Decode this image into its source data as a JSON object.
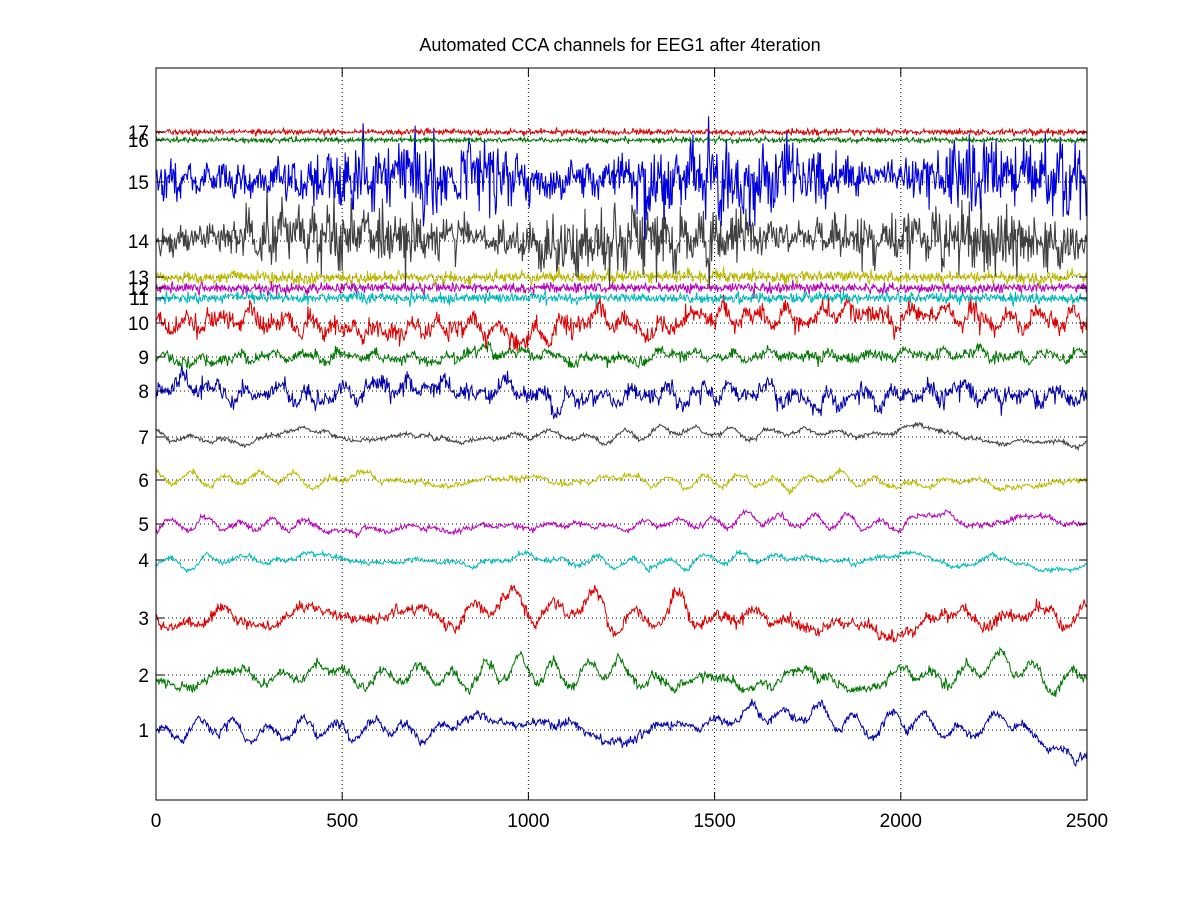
{
  "chart_data": {
    "type": "line",
    "title": "Automated CCA channels for EEG1 after  4teration",
    "xlabel": "",
    "ylabel": "",
    "xlim": [
      0,
      2500
    ],
    "xticks": [
      "0",
      "500",
      "1000",
      "1500",
      "2000",
      "2500"
    ],
    "x_tick_values": [
      0,
      500,
      1000,
      1500,
      2000,
      2500
    ],
    "grid": true,
    "legend": "none",
    "n_samples": 2500,
    "series": [
      {
        "label": "1",
        "color": "#0000aa",
        "amp": 0.9,
        "mode": "alpha",
        "drift": [
          [
            0,
            0
          ],
          [
            0.28,
            0
          ],
          [
            0.35,
            0.4
          ],
          [
            0.5,
            -0.3
          ],
          [
            0.58,
            0.2
          ],
          [
            0.7,
            0.9
          ],
          [
            0.8,
            0.3
          ],
          [
            0.89,
            -0.1
          ],
          [
            0.93,
            0.8
          ],
          [
            0.96,
            -0.3
          ],
          [
            0.99,
            -1.5
          ],
          [
            1,
            -1.2
          ]
        ]
      },
      {
        "label": "2",
        "color": "#007700",
        "amp": 1.0,
        "mode": "alpha",
        "drift": [
          [
            0,
            0
          ],
          [
            0.5,
            0
          ],
          [
            0.7,
            -0.3
          ],
          [
            0.85,
            0.2
          ],
          [
            1,
            0
          ]
        ]
      },
      {
        "label": "3",
        "color": "#dd0000",
        "amp": 1.2,
        "mode": "alpha",
        "drift": [
          [
            0,
            0
          ],
          [
            1,
            0
          ]
        ]
      },
      {
        "label": "4",
        "color": "#00bbbb",
        "amp": 0.5,
        "mode": "alpha",
        "drift": [
          [
            0,
            0
          ],
          [
            0.85,
            0
          ],
          [
            0.9,
            0.4
          ],
          [
            0.93,
            -0.2
          ],
          [
            1,
            0
          ]
        ]
      },
      {
        "label": "5",
        "color": "#bb00bb",
        "amp": 0.55,
        "mode": "alpha",
        "drift": [
          [
            0,
            0
          ],
          [
            0.8,
            0
          ],
          [
            0.83,
            0.6
          ],
          [
            0.87,
            0
          ],
          [
            1,
            0
          ]
        ]
      },
      {
        "label": "6",
        "color": "#bbbb00",
        "amp": 0.55,
        "mode": "alpha",
        "drift": [
          [
            0,
            0
          ],
          [
            1,
            0
          ]
        ]
      },
      {
        "label": "7",
        "color": "#404040",
        "amp": 0.45,
        "mode": "alpha",
        "drift": [
          [
            0,
            0
          ],
          [
            1,
            0
          ]
        ]
      },
      {
        "label": "8",
        "color": "#0000aa",
        "amp": 0.85,
        "mode": "mixed",
        "drift": [
          [
            0,
            0
          ],
          [
            1,
            0
          ]
        ]
      },
      {
        "label": "9",
        "color": "#007700",
        "amp": 0.5,
        "mode": "mixed",
        "drift": [
          [
            0,
            0
          ],
          [
            1,
            0
          ]
        ]
      },
      {
        "label": "10",
        "color": "#dd0000",
        "amp": 0.95,
        "mode": "mixed",
        "drift": [
          [
            0,
            0
          ],
          [
            0.42,
            0
          ],
          [
            0.48,
            0.6
          ],
          [
            0.55,
            0
          ],
          [
            1,
            0
          ]
        ]
      },
      {
        "label": "11",
        "color": "#00bbbb",
        "amp": 0.3,
        "mode": "noise",
        "drift": [
          [
            0,
            0
          ],
          [
            1,
            0
          ]
        ]
      },
      {
        "label": "12",
        "color": "#bb00bb",
        "amp": 0.28,
        "mode": "noise",
        "drift": [
          [
            0,
            0
          ],
          [
            1,
            0
          ]
        ]
      },
      {
        "label": "13",
        "color": "#bbbb00",
        "amp": 0.35,
        "mode": "noise",
        "drift": [
          [
            0,
            0
          ],
          [
            1,
            0
          ]
        ]
      },
      {
        "label": "14",
        "color": "#404040",
        "amp": 1.7,
        "mode": "burst",
        "drift": [
          [
            0,
            0
          ],
          [
            1,
            0
          ]
        ]
      },
      {
        "label": "15",
        "color": "#0000dd",
        "amp": 1.85,
        "mode": "burst",
        "drift": [
          [
            0,
            0
          ],
          [
            1,
            0
          ]
        ]
      },
      {
        "label": "16",
        "color": "#007700",
        "amp": 0.12,
        "mode": "flat",
        "drift": [
          [
            0,
            0
          ],
          [
            1,
            0
          ]
        ]
      },
      {
        "label": "17",
        "color": "#dd0000",
        "amp": 0.14,
        "mode": "flat",
        "drift": [
          [
            0,
            0
          ],
          [
            1,
            0
          ]
        ]
      }
    ]
  }
}
